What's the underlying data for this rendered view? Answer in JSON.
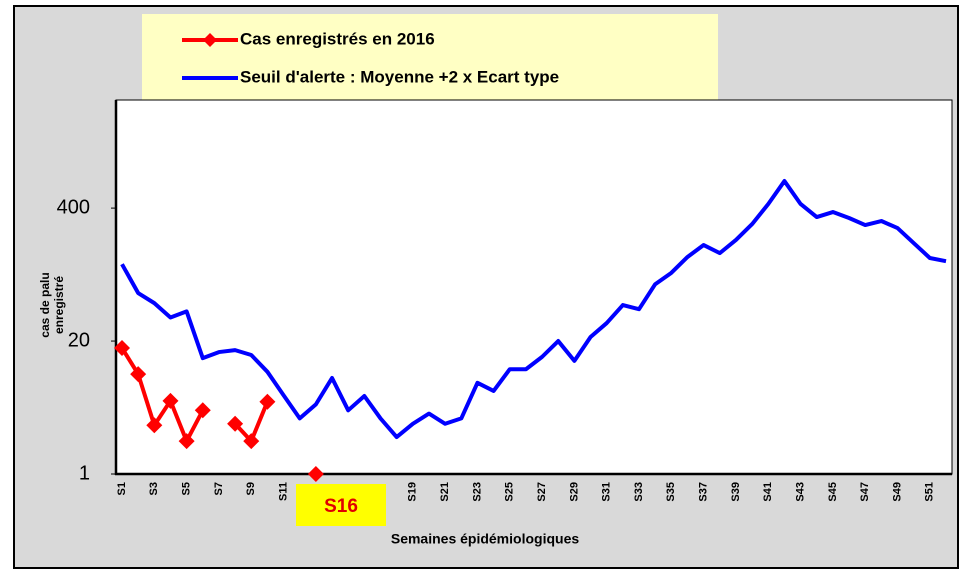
{
  "chart_data": {
    "type": "line",
    "categories": [
      "S1",
      null,
      "S3",
      null,
      "S5",
      null,
      "S7",
      null,
      "S9",
      null,
      "S11",
      null,
      null,
      null,
      null,
      null,
      null,
      null,
      "S19",
      null,
      "S21",
      null,
      "S23",
      null,
      "S25",
      null,
      "S27",
      null,
      "S29",
      null,
      "S31",
      null,
      "S33",
      null,
      "S35",
      null,
      "S37",
      null,
      "S39",
      null,
      "S41",
      null,
      "S43",
      null,
      "S45",
      null,
      "S47",
      null,
      "S49",
      null,
      "S51",
      null
    ],
    "series": [
      {
        "name": "Cas enregistrés en 2016",
        "color": "#ff0000",
        "marker": "diamond",
        "values": [
          17.1,
          9.5,
          3.0,
          5.2,
          2.1,
          4.2,
          null,
          3.1,
          2.1,
          5.1,
          null,
          null,
          1,
          null,
          null,
          null,
          null,
          null,
          null,
          null,
          null,
          null,
          null,
          null,
          null,
          null,
          null,
          null,
          null,
          null,
          null,
          null,
          null,
          null,
          null,
          null,
          null,
          null,
          null,
          null,
          null,
          null,
          null,
          null,
          null,
          null,
          null,
          null,
          null,
          null,
          null,
          null
        ]
      },
      {
        "name": "Seuil d'alerte : Moyenne +2 x Ecart type",
        "color": "#0000ff",
        "values": [
          113,
          59,
          47,
          34,
          39,
          13.6,
          15.6,
          16.3,
          14.6,
          10,
          5.9,
          3.5,
          4.8,
          8.7,
          4.2,
          5.8,
          3.5,
          2.3,
          3.1,
          3.9,
          3.1,
          3.5,
          7.8,
          6.5,
          10.6,
          10.6,
          14,
          20,
          12.8,
          21.9,
          30,
          45,
          41,
          72,
          93,
          133,
          174,
          145,
          195,
          279,
          439,
          736,
          439,
          327,
          366,
          320,
          273,
          299,
          255,
          182,
          130,
          121
        ]
      }
    ],
    "x_label": "Semaines épidémiologiques",
    "y_label": [
      "cas de palu",
      "enregistré"
    ],
    "annotation": "S16",
    "ylim": [
      1,
      4570
    ],
    "yticks": [
      1,
      20,
      400
    ],
    "log_y": true,
    "grid": false
  }
}
